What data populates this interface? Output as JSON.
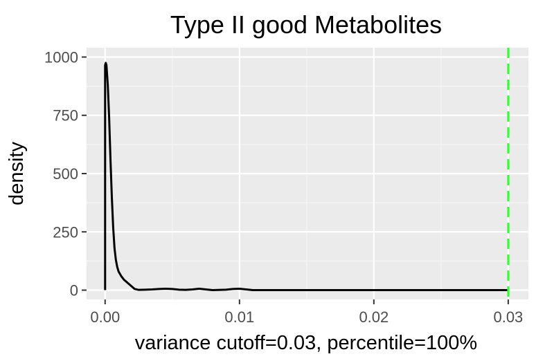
{
  "chart_data": {
    "type": "line",
    "title": "Type II good Metabolites",
    "xlabel": "variance cutoff=0.03, percentile=100%",
    "ylabel": "density",
    "xlim": [
      -0.00138,
      0.0315
    ],
    "ylim": [
      -40,
      1040
    ],
    "x_ticks": [
      0,
      0.01,
      0.02,
      0.03
    ],
    "x_tick_labels": [
      "0.00",
      "0.01",
      "0.02",
      "0.03"
    ],
    "y_ticks": [
      0,
      250,
      500,
      750,
      1000
    ],
    "y_tick_labels": [
      "0",
      "250",
      "500",
      "750",
      "1000"
    ],
    "grid": true,
    "series": [
      {
        "color": "#000000",
        "x": [
          0,
          0,
          5e-05,
          0.0001,
          0.0002,
          0.0003,
          0.0004,
          0.0005,
          0.0006,
          0.0007,
          0.0008,
          0.0009,
          0.001,
          0.0012,
          0.0014,
          0.0016,
          0.0018,
          0.002,
          0.0022,
          0.0025,
          0.003,
          0.0035,
          0.004,
          0.0045,
          0.005,
          0.0055,
          0.006,
          0.0065,
          0.007,
          0.0075,
          0.008,
          0.009,
          0.0095,
          0.01,
          0.0105,
          0.011,
          0.012,
          0.015,
          0.02,
          0.025,
          0.03,
          0.03
        ],
        "y": [
          0,
          965,
          975,
          965,
          880,
          740,
          560,
          400,
          270,
          180,
          130,
          100,
          80,
          60,
          45,
          35,
          25,
          15,
          5,
          1,
          2,
          3,
          5,
          6,
          5,
          2,
          1,
          3,
          6,
          3,
          0,
          2,
          5,
          6,
          3,
          0,
          0,
          0,
          0,
          0,
          0,
          0
        ]
      }
    ],
    "vline": {
      "x": 0.03,
      "color": "#33ff33",
      "style": "dashed"
    },
    "colors": {
      "panel": "#ebebeb",
      "grid_major": "#ffffff",
      "grid_minor": "#f5f5f5",
      "tick_label": "#4d4d4d"
    }
  }
}
